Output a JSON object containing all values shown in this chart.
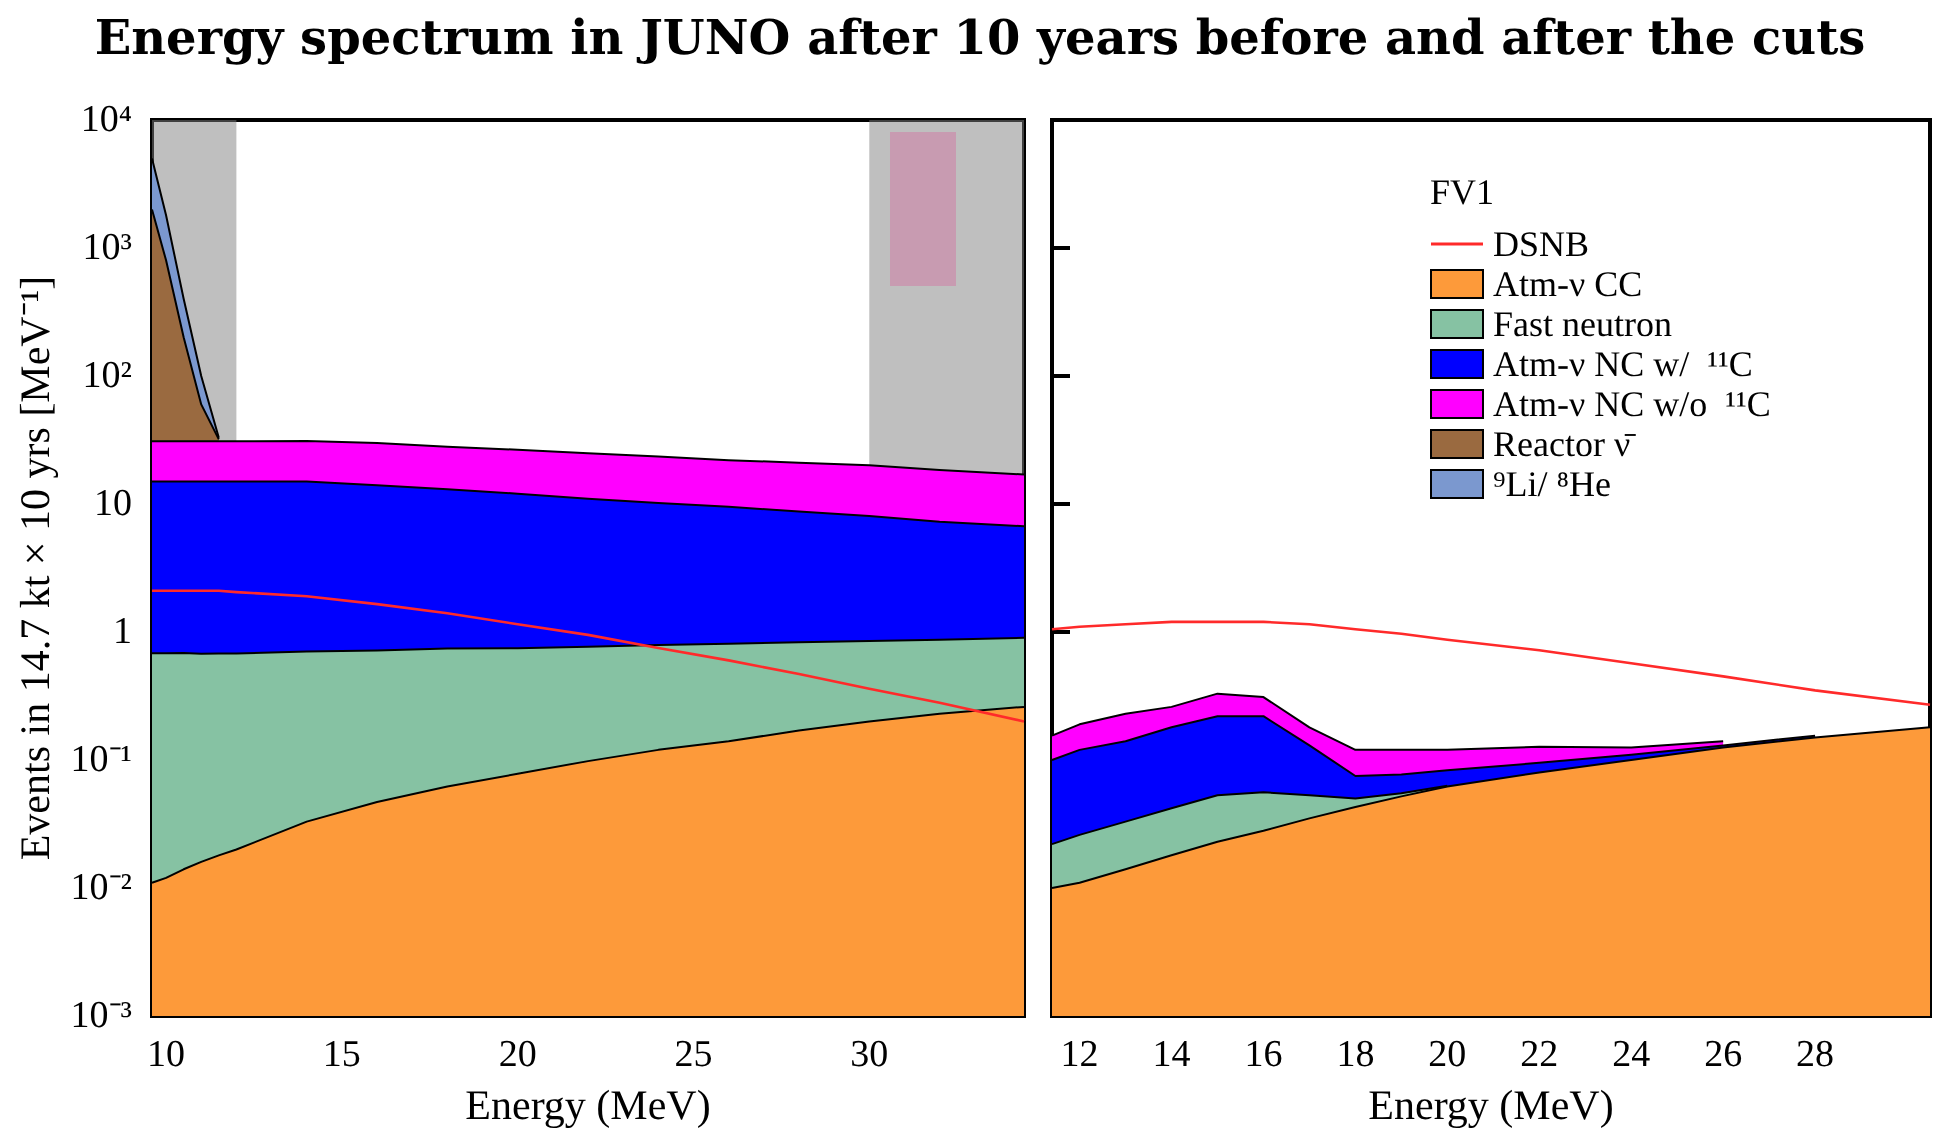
{
  "chart_data": [
    {
      "type": "area",
      "title": "Energy spectrum in JUNO after 10 years before and after the cuts",
      "xlabel": "Energy (MeV)",
      "ylabel": "Events in 14.7 kt × 10 yrs [MeV⁻¹]",
      "stacked": true,
      "log": "y",
      "legend": "right",
      "legend_title": "FV1",
      "x": [
        9.6,
        10,
        10.5,
        11,
        11.5,
        12,
        14,
        16,
        18,
        20,
        22,
        24,
        26,
        28,
        30,
        32,
        34.4
      ],
      "xlim": [
        9.6,
        34.4
      ],
      "xticks": [
        10,
        15,
        20,
        25,
        30
      ],
      "ylim": [
        0.001,
        10000
      ],
      "yticks": [
        {
          "value": 0.001,
          "label": "10⁻³"
        },
        {
          "value": 0.01,
          "label": "10⁻²"
        },
        {
          "value": 0.1,
          "label": "10⁻¹"
        },
        1,
        10,
        {
          "value": 100,
          "label": "10²"
        },
        {
          "value": 1000,
          "label": "10³"
        },
        {
          "value": 10000,
          "label": "10⁴"
        }
      ],
      "bands": [
        {
          "axis": "x",
          "from": 9.6,
          "to": 12,
          "color": "#808080"
        },
        {
          "axis": "x",
          "from": 30,
          "to": 34.4,
          "color": "#808080"
        }
      ],
      "series": [
        {
          "name": "DSNB",
          "type": "line",
          "color": "#ff2a2a",
          "values": [
            2.1,
            2.1,
            2.1,
            2.1,
            2.1,
            2.05,
            1.9,
            1.65,
            1.4,
            1.15,
            0.95,
            0.75,
            0.6,
            0.47,
            0.36,
            0.28,
            0.2
          ]
        },
        {
          "name": "Atm-ν CC",
          "color": "#fd9a3a",
          "values": [
            0.011,
            0.012,
            0.014,
            0.016,
            0.018,
            0.02,
            0.033,
            0.047,
            0.062,
            0.078,
            0.098,
            0.12,
            0.14,
            0.17,
            0.2,
            0.23,
            0.26
          ]
        },
        {
          "name": "Fast neutron",
          "color": "#86c2a3",
          "values": [
            0.67,
            0.67,
            0.67,
            0.66,
            0.66,
            0.66,
            0.67,
            0.67,
            0.68,
            0.67,
            0.67,
            0.67,
            0.67,
            0.66,
            0.65,
            0.64,
            0.64
          ]
        },
        {
          "name": "Atm-ν NC w/  ¹¹C",
          "color": "#0000ff",
          "values": [
            14.3,
            14.3,
            14.3,
            14.3,
            14.3,
            14.3,
            14.3,
            13.3,
            12.3,
            11.3,
            10.2,
            9.4,
            8.7,
            7.9,
            7.2,
            6.4,
            5.8
          ]
        },
        {
          "name": "Atm-ν NC w/o  ¹¹C",
          "color": "#ff00ff",
          "values": [
            16,
            16,
            16,
            16,
            16,
            16,
            16,
            16,
            15,
            14.5,
            14,
            13.3,
            12.5,
            12.3,
            12,
            11.2,
            10.3
          ]
        },
        {
          "name": "Reactor ν̄",
          "color": "#9a6a40",
          "values": [
            1970,
            770,
            170,
            29,
            1,
            null,
            null,
            null,
            null,
            null,
            null,
            null,
            null,
            null,
            null,
            null,
            null
          ]
        },
        {
          "name": "⁹Li/ ⁸He",
          "color": "#7b98cf",
          "values": [
            3000,
            1000,
            200,
            40,
            1,
            null,
            null,
            null,
            null,
            null,
            null,
            null,
            null,
            null,
            null,
            null,
            null
          ]
        }
      ]
    },
    {
      "type": "area",
      "xlabel": "Energy (MeV)",
      "stacked": true,
      "log": "y",
      "tick_labels": "x",
      "x": [
        11.4,
        12,
        13,
        14,
        15,
        16,
        17,
        18,
        19,
        20,
        22,
        24,
        26,
        28,
        30.5
      ],
      "xlim": [
        11.4,
        30.5
      ],
      "xticks": [
        12,
        14,
        16,
        18,
        20,
        22,
        24,
        26,
        28
      ],
      "ylim": [
        0.001,
        10000
      ],
      "yticks": [
        0.001,
        0.01,
        0.1,
        1,
        10,
        100,
        1000,
        10000
      ],
      "series": [
        {
          "type": "line",
          "color": "#ff2a2a",
          "values": [
            1.05,
            1.1,
            1.15,
            1.2,
            1.2,
            1.2,
            1.15,
            1.05,
            0.97,
            0.87,
            0.72,
            0.57,
            0.45,
            0.35,
            0.27
          ]
        },
        {
          "color": "#fd9a3a",
          "values": [
            0.01,
            0.011,
            0.014,
            0.018,
            0.023,
            0.028,
            0.035,
            0.043,
            0.052,
            0.062,
            0.08,
            0.1,
            0.125,
            0.15,
            0.18
          ]
        },
        {
          "color": "#86c2a3",
          "values": [
            0.012,
            0.015,
            0.019,
            0.024,
            0.03,
            0.028,
            0.018,
            0.007,
            0.003,
            0.001,
            null,
            null,
            null,
            null,
            null
          ]
        },
        {
          "color": "#0000ff",
          "values": [
            0.078,
            0.094,
            0.107,
            0.138,
            0.167,
            0.164,
            0.077,
            0.025,
            0.022,
            0.02,
            0.015,
            0.01,
            0.005,
            0.005,
            null
          ]
        },
        {
          "color": "#ff00ff",
          "values": [
            0.055,
            0.07,
            0.09,
            0.08,
            0.11,
            0.09,
            0.05,
            0.045,
            0.043,
            0.037,
            0.032,
            0.015,
            0.01,
            null,
            null
          ]
        }
      ]
    }
  ]
}
